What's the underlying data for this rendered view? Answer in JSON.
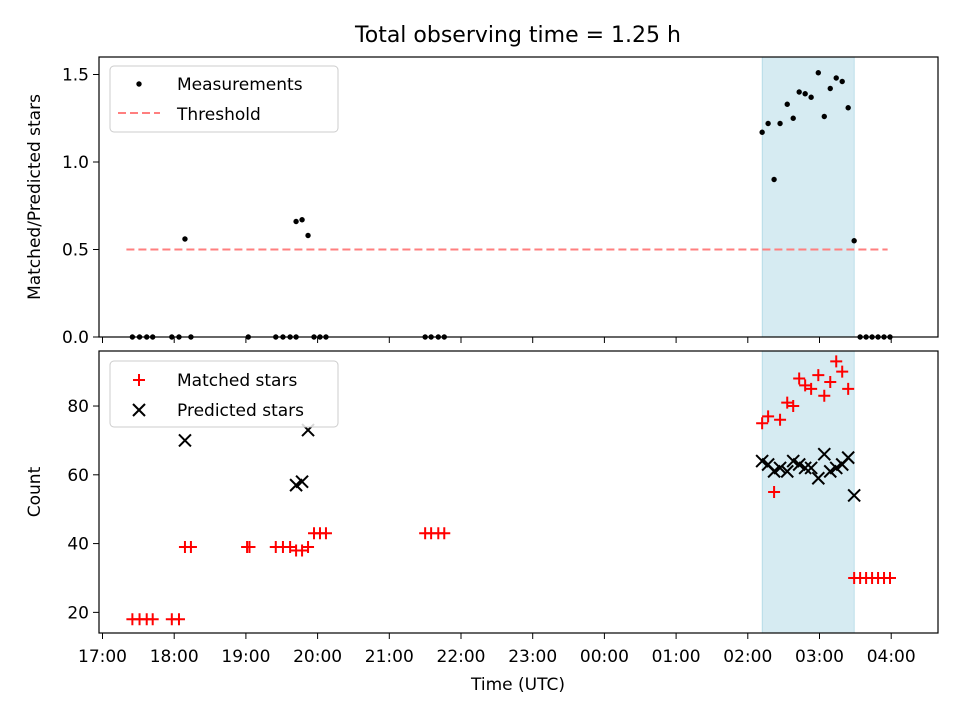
{
  "title": "Total observing time = 1.25 h",
  "chart_data": [
    {
      "type": "scatter",
      "ylabel": "Matched/Predicted stars",
      "ylim": [
        0,
        1.6
      ],
      "yticks": [
        0.0,
        0.5,
        1.0,
        1.5
      ],
      "ytick_labels": [
        "0.0",
        "0.5",
        "1.0",
        "1.5"
      ],
      "legend": {
        "placement": "upper-left",
        "entries": [
          "Measurements",
          "Threshold"
        ]
      },
      "highlight_span": {
        "x": [
          "02:12",
          "03:29"
        ],
        "color": "#add8e6"
      },
      "threshold": {
        "name": "Threshold",
        "y": 0.5,
        "x": [
          "17:20",
          "03:57"
        ],
        "color": "#ff7f7f",
        "style": "dashed"
      },
      "series": [
        {
          "name": "Measurements",
          "color": "#000000",
          "x": [
            "17:25",
            "17:31",
            "17:37",
            "17:42",
            "17:58",
            "18:04",
            "18:09",
            "18:14",
            "19:02",
            "19:25",
            "19:31",
            "19:37",
            "19:42",
            "19:42",
            "19:47",
            "19:52",
            "19:57",
            "20:02",
            "20:07",
            "21:30",
            "21:35",
            "21:41",
            "21:46",
            "02:12",
            "02:17",
            "02:22",
            "02:27",
            "02:33",
            "02:38",
            "02:43",
            "02:48",
            "02:53",
            "02:59",
            "03:04",
            "03:09",
            "03:14",
            "03:19",
            "03:24",
            "03:29",
            "03:34",
            "03:39",
            "03:44",
            "03:49",
            "03:54",
            "03:59"
          ],
          "y": [
            0,
            0,
            0,
            0,
            0,
            0,
            0.56,
            0,
            0,
            0,
            0,
            0,
            0,
            0.66,
            0.67,
            0.58,
            0,
            0,
            0,
            0,
            0,
            0,
            0,
            1.17,
            1.22,
            0.9,
            1.22,
            1.33,
            1.25,
            1.4,
            1.39,
            1.37,
            1.51,
            1.26,
            1.42,
            1.48,
            1.46,
            1.31,
            0.55,
            0,
            0,
            0,
            0,
            0,
            0
          ]
        }
      ]
    },
    {
      "type": "scatter",
      "xlabel": "Time (UTC)",
      "ylabel": "Count",
      "ylim": [
        14,
        96
      ],
      "yticks": [
        20,
        40,
        60,
        80
      ],
      "xticks": [
        "17:00",
        "18:00",
        "19:00",
        "20:00",
        "21:00",
        "22:00",
        "23:00",
        "00:00",
        "01:00",
        "02:00",
        "03:00",
        "04:00"
      ],
      "legend": {
        "placement": "upper-left",
        "entries": [
          "Matched stars",
          "Predicted stars"
        ]
      },
      "highlight_span": {
        "x": [
          "02:12",
          "03:29"
        ],
        "color": "#add8e6"
      },
      "series": [
        {
          "name": "Matched stars",
          "marker": "+",
          "color": "#ff0000",
          "x": [
            "17:25",
            "17:31",
            "17:37",
            "17:42",
            "17:58",
            "18:04",
            "18:09",
            "18:14",
            "19:01",
            "19:03",
            "19:25",
            "19:31",
            "19:37",
            "19:42",
            "19:47",
            "19:52",
            "19:57",
            "20:02",
            "20:07",
            "21:30",
            "21:35",
            "21:41",
            "21:46",
            "02:12",
            "02:17",
            "02:22",
            "02:27",
            "02:33",
            "02:38",
            "02:43",
            "02:48",
            "02:53",
            "02:59",
            "03:04",
            "03:09",
            "03:14",
            "03:19",
            "03:24",
            "03:29",
            "03:34",
            "03:39",
            "03:44",
            "03:49",
            "03:54",
            "03:59"
          ],
          "y": [
            18,
            18,
            18,
            18,
            18,
            18,
            39,
            39,
            39,
            39,
            39,
            39,
            39,
            38,
            38,
            39,
            43,
            43,
            43,
            43,
            43,
            43,
            43,
            75,
            77,
            55,
            76,
            81,
            80,
            88,
            86,
            85,
            89,
            83,
            87,
            93,
            90,
            85,
            30,
            30,
            30,
            30,
            30,
            30,
            30
          ]
        },
        {
          "name": "Predicted stars",
          "marker": "x",
          "color": "#000000",
          "x": [
            "18:09",
            "19:42",
            "19:47",
            "19:52",
            "02:12",
            "02:17",
            "02:22",
            "02:27",
            "02:33",
            "02:38",
            "02:43",
            "02:48",
            "02:53",
            "02:59",
            "03:04",
            "03:09",
            "03:14",
            "03:19",
            "03:24",
            "03:29"
          ],
          "y": [
            70,
            57,
            58,
            73,
            64,
            63,
            61,
            62,
            61,
            64,
            63,
            62,
            62,
            59,
            66,
            61,
            62,
            63,
            65,
            54
          ]
        }
      ]
    }
  ]
}
